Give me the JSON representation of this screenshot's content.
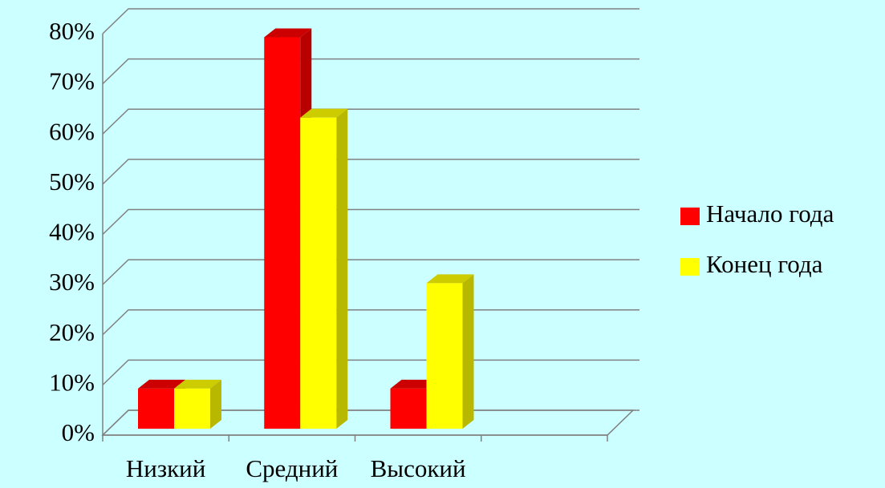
{
  "chart_data": {
    "type": "bar3d",
    "categories": [
      "Низкий",
      "Средний",
      "Высокий",
      null
    ],
    "series": [
      {
        "name": "Начало года",
        "color": "#ff0000",
        "values": [
          8,
          78,
          8,
          null
        ]
      },
      {
        "name": "Конец года",
        "color": "#ffff00",
        "values": [
          8,
          62,
          29,
          null
        ]
      }
    ],
    "ylim": [
      0,
      80
    ],
    "yticks": [
      {
        "value": 0,
        "label": "0%"
      },
      {
        "value": 10,
        "label": "10%"
      },
      {
        "value": 20,
        "label": "20%"
      },
      {
        "value": 30,
        "label": "30%"
      },
      {
        "value": 40,
        "label": "40%"
      },
      {
        "value": 50,
        "label": "50%"
      },
      {
        "value": 60,
        "label": "60%"
      },
      {
        "value": 70,
        "label": "70%"
      },
      {
        "value": 80,
        "label": "80%"
      }
    ],
    "grid": true,
    "legend": "right"
  }
}
